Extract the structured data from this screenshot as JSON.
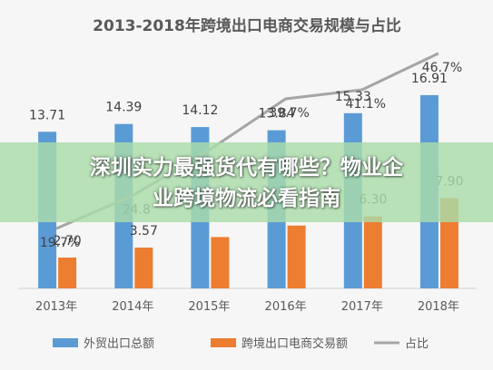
{
  "chart_data": {
    "type": "bar",
    "title": "2013-2018年跨境出口电商交易规模与占比",
    "categories": [
      "2013年",
      "2014年",
      "2015年",
      "2016年",
      "2017年",
      "2018年"
    ],
    "series": [
      {
        "name": "外贸出口总额",
        "type": "bar",
        "color": "#5b9bd5",
        "values": [
          13.71,
          14.39,
          14.12,
          13.84,
          15.33,
          16.91
        ],
        "labels": [
          "13.71",
          "14.39",
          "14.12",
          "13.84",
          "15.33",
          "16.91"
        ]
      },
      {
        "name": "跨境出口电商交易额",
        "type": "bar",
        "color": "#ed7d31",
        "values": [
          2.7,
          3.57,
          4.49,
          5.5,
          6.3,
          7.9
        ],
        "labels": [
          "2.70",
          "3.57",
          "",
          "",
          "6.30",
          "7.90"
        ]
      },
      {
        "name": "占比",
        "type": "line",
        "color": "#a5a5a5",
        "values": [
          19.7,
          24.8,
          31.8,
          39.7,
          41.1,
          46.7
        ],
        "labels": [
          "19.7%",
          "24.8",
          "",
          "39.7%",
          "41.1%",
          "46.7%"
        ]
      }
    ],
    "ylim": [
      0,
      18
    ],
    "legend_position": "bottom",
    "grid": false
  },
  "overlay": {
    "line1": "深圳实力最强货代有哪些？物业企",
    "line2": "业跨境物流必看指南"
  }
}
